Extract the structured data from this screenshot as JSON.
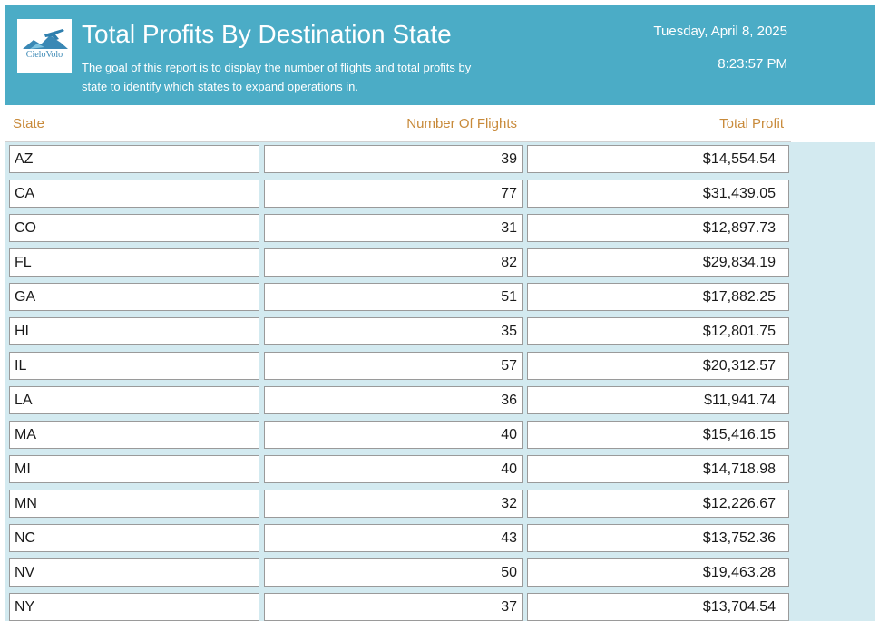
{
  "header": {
    "logo_text": "CieloVolo",
    "title": "Total Profits By Destination State",
    "subtitle": "The goal of this report is to display the number of flights and total profits by state to identify which states to expand operations in.",
    "date": "Tuesday, April 8, 2025",
    "time": "8:23:57 PM"
  },
  "columns": {
    "state": "State",
    "flights": "Number Of Flights",
    "profit": "Total Profit"
  },
  "rows": [
    {
      "state": "AZ",
      "flights": "39",
      "profit": "$14,554.54"
    },
    {
      "state": "CA",
      "flights": "77",
      "profit": "$31,439.05"
    },
    {
      "state": "CO",
      "flights": "31",
      "profit": "$12,897.73"
    },
    {
      "state": "FL",
      "flights": "82",
      "profit": "$29,834.19"
    },
    {
      "state": "GA",
      "flights": "51",
      "profit": "$17,882.25"
    },
    {
      "state": "HI",
      "flights": "35",
      "profit": "$12,801.75"
    },
    {
      "state": "IL",
      "flights": "57",
      "profit": "$20,312.57"
    },
    {
      "state": "LA",
      "flights": "36",
      "profit": "$11,941.74"
    },
    {
      "state": "MA",
      "flights": "40",
      "profit": "$15,416.15"
    },
    {
      "state": "MI",
      "flights": "40",
      "profit": "$14,718.98"
    },
    {
      "state": "MN",
      "flights": "32",
      "profit": "$12,226.67"
    },
    {
      "state": "NC",
      "flights": "43",
      "profit": "$13,752.36"
    },
    {
      "state": "NV",
      "flights": "50",
      "profit": "$19,463.28"
    },
    {
      "state": "NY",
      "flights": "37",
      "profit": "$13,704.54"
    }
  ],
  "colors": {
    "header_bg": "#4bacc6",
    "column_header_text": "#c88a3a",
    "detail_bg": "#d3eaf0"
  }
}
